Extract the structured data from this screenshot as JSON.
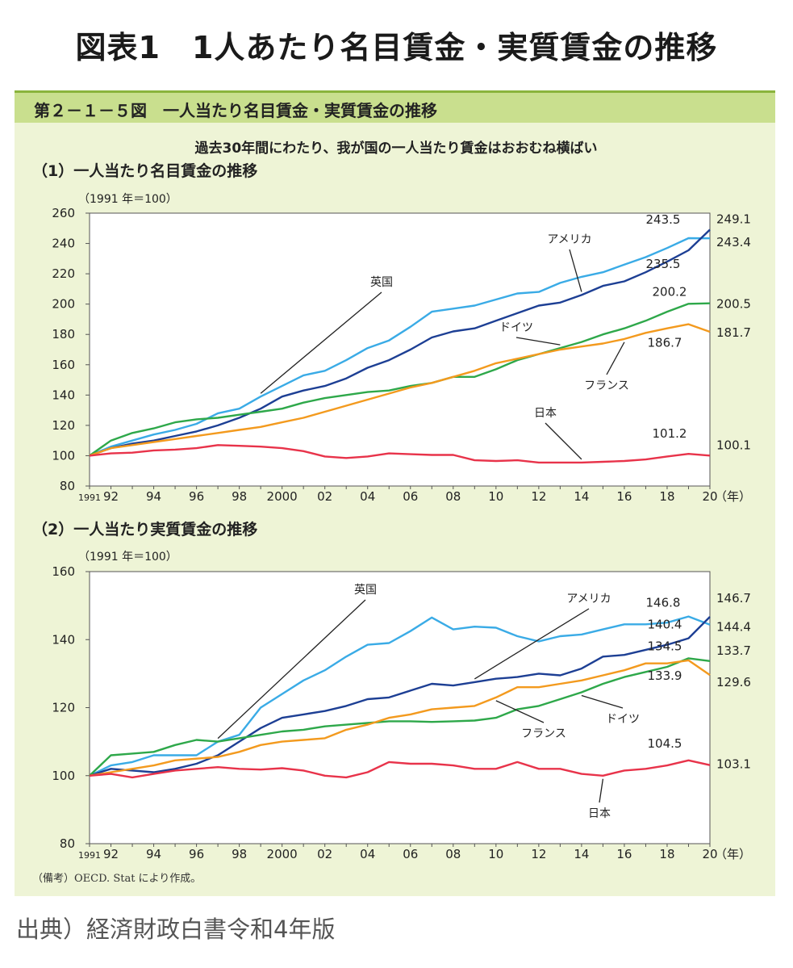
{
  "page_title": "図表1　1人あたり名目賃金・実質賃金の推移",
  "panel_header": "第２－１－５図　一人当たり名目賃金・実質賃金の推移",
  "subtitle": "過去30年間にわたり、我が国の一人当たり賃金はおおむね横ばい",
  "footnote": "（備考）OECD. Stat により作成。",
  "source": "出典）経済財政白書令和4年版",
  "colors": {
    "英国": "#3aabe6",
    "アメリカ": "#1d3f94",
    "ドイツ": "#2ea84a",
    "フランス": "#f39a1e",
    "日本": "#e8334a"
  },
  "chart_data": [
    {
      "type": "line",
      "title": "（1）一人当たり名目賃金の推移",
      "unit_label": "（1991 年＝100）",
      "x": [
        1991,
        1992,
        1993,
        1994,
        1995,
        1996,
        1997,
        1998,
        1999,
        2000,
        2001,
        2002,
        2003,
        2004,
        2005,
        2006,
        2007,
        2008,
        2009,
        2010,
        2011,
        2012,
        2013,
        2014,
        2015,
        2016,
        2017,
        2018,
        2019,
        2020
      ],
      "x_tick_labels": [
        "1991",
        "92",
        "94",
        "96",
        "98",
        "2000",
        "02",
        "04",
        "06",
        "08",
        "10",
        "12",
        "14",
        "16",
        "18",
        "20"
      ],
      "x_unit": "（年）",
      "ylim": [
        80,
        260
      ],
      "y_ticks": [
        80,
        100,
        120,
        140,
        160,
        180,
        200,
        220,
        240,
        260
      ],
      "series": [
        {
          "name": "英国",
          "values": [
            100,
            106,
            110,
            114,
            117,
            121,
            128,
            131,
            139,
            146,
            153,
            156,
            163,
            171,
            176,
            185,
            195,
            197,
            199,
            203,
            207,
            208,
            214,
            218,
            221,
            226,
            231,
            237,
            243.5,
            243.4
          ]
        },
        {
          "name": "アメリカ",
          "values": [
            100,
            105,
            108,
            110,
            113,
            116,
            120,
            125,
            131,
            139,
            143,
            146,
            151,
            158,
            163,
            170,
            178,
            182,
            184,
            189,
            194,
            199,
            201,
            206,
            212,
            215,
            221,
            228,
            235.5,
            249.1
          ]
        },
        {
          "name": "ドイツ",
          "values": [
            100,
            110,
            115,
            118,
            122,
            124,
            125,
            127,
            129,
            131,
            135,
            138,
            140,
            142,
            143,
            146,
            148,
            152,
            152,
            157,
            163,
            167,
            171,
            175,
            180,
            184,
            189,
            195,
            200.2,
            200.5
          ]
        },
        {
          "name": "フランス",
          "values": [
            100,
            105,
            107,
            109,
            111,
            113,
            115,
            117,
            119,
            122,
            125,
            129,
            133,
            137,
            141,
            145,
            148,
            152,
            156,
            161,
            164,
            167,
            170,
            172,
            174,
            177,
            181,
            184,
            186.7,
            181.7
          ]
        },
        {
          "name": "日本",
          "values": [
            100,
            101.5,
            102,
            103.5,
            104,
            105,
            107,
            106.5,
            106,
            105,
            103,
            99.5,
            98.5,
            99.5,
            101.5,
            101,
            100.5,
            100.5,
            97,
            96.5,
            97,
            95.5,
            95.5,
            95.5,
            96,
            96.5,
            97.5,
            99.5,
            101.2,
            100.1
          ]
        }
      ],
      "annotations": [
        {
          "text": "243.5"
        },
        {
          "text": "249.1"
        },
        {
          "text": "243.4"
        },
        {
          "text": "235.5"
        },
        {
          "text": "200.2"
        },
        {
          "text": "200.5"
        },
        {
          "text": "181.7"
        },
        {
          "text": "186.7"
        },
        {
          "text": "101.2"
        },
        {
          "text": "100.1"
        }
      ]
    },
    {
      "type": "line",
      "title": "（2）一人当たり実質賃金の推移",
      "unit_label": "（1991 年＝100）",
      "x": [
        1991,
        1992,
        1993,
        1994,
        1995,
        1996,
        1997,
        1998,
        1999,
        2000,
        2001,
        2002,
        2003,
        2004,
        2005,
        2006,
        2007,
        2008,
        2009,
        2010,
        2011,
        2012,
        2013,
        2014,
        2015,
        2016,
        2017,
        2018,
        2019,
        2020
      ],
      "x_tick_labels": [
        "1991",
        "92",
        "94",
        "96",
        "98",
        "2000",
        "02",
        "04",
        "06",
        "08",
        "10",
        "12",
        "14",
        "16",
        "18",
        "20"
      ],
      "x_unit": "（年）",
      "ylim": [
        80,
        160
      ],
      "y_ticks": [
        80,
        100,
        120,
        140,
        160
      ],
      "series": [
        {
          "name": "英国",
          "values": [
            100,
            103,
            104,
            106,
            106,
            106,
            110,
            112,
            120,
            124,
            128,
            131,
            135,
            138.5,
            139,
            142.5,
            146.5,
            143,
            143.8,
            143.5,
            141,
            139.5,
            141,
            141.5,
            143,
            144.5,
            144.5,
            145,
            146.8,
            144.4
          ]
        },
        {
          "name": "アメリカ",
          "values": [
            100,
            102,
            101.5,
            101,
            102,
            103.5,
            106,
            110,
            114,
            117,
            118,
            119,
            120.5,
            122.5,
            123,
            125,
            127,
            126.5,
            127.5,
            128.5,
            129,
            130,
            129.5,
            131.5,
            135,
            135.5,
            137,
            138.5,
            140.4,
            146.7
          ]
        },
        {
          "name": "ドイツ",
          "values": [
            100,
            106,
            106.5,
            107,
            109,
            110.5,
            110,
            111,
            112,
            113,
            113.5,
            114.5,
            115,
            115.5,
            116,
            116,
            115.8,
            116,
            116.2,
            117,
            119.5,
            120.5,
            122.5,
            124.5,
            127,
            129,
            130.5,
            132,
            134.5,
            133.7
          ]
        },
        {
          "name": "フランス",
          "values": [
            100,
            101,
            102,
            103,
            104.5,
            105,
            105.5,
            107,
            109,
            110,
            110.5,
            111,
            113.5,
            115,
            117,
            118,
            119.5,
            120,
            120.5,
            123,
            126,
            126,
            127,
            128,
            129.5,
            131,
            133,
            133,
            133.9,
            129.6
          ]
        },
        {
          "name": "日本",
          "values": [
            100,
            100.5,
            99.5,
            100.5,
            101.5,
            102,
            102.5,
            102,
            101.8,
            102.2,
            101.5,
            100,
            99.5,
            101,
            104,
            103.5,
            103.5,
            103,
            102,
            102,
            104,
            102,
            102,
            100.5,
            100,
            101.5,
            102,
            103,
            104.5,
            103.1
          ]
        }
      ],
      "annotations": [
        {
          "text": "146.8"
        },
        {
          "text": "146.7"
        },
        {
          "text": "144.4"
        },
        {
          "text": "140.4"
        },
        {
          "text": "134.5"
        },
        {
          "text": "133.7"
        },
        {
          "text": "129.6"
        },
        {
          "text": "133.9"
        },
        {
          "text": "104.5"
        },
        {
          "text": "103.1"
        }
      ]
    }
  ]
}
